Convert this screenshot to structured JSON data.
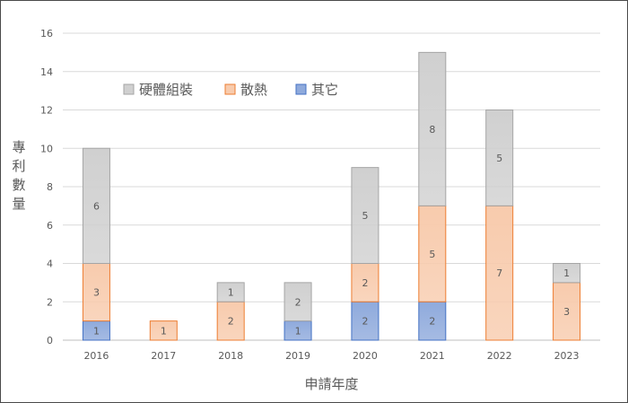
{
  "chart_data": {
    "type": "bar",
    "stacked": true,
    "title": "",
    "xlabel": "申請年度",
    "ylabel": "專利數量",
    "categories": [
      "2016",
      "2017",
      "2018",
      "2019",
      "2020",
      "2021",
      "2022",
      "2023"
    ],
    "ylim": [
      0,
      16
    ],
    "yticks": [
      0,
      2,
      4,
      6,
      8,
      10,
      12,
      14,
      16
    ],
    "grid": true,
    "legend_position": "top-left",
    "series": [
      {
        "name": "其它",
        "color": "#8faadc",
        "stroke": "#4472c4",
        "values": [
          1,
          0,
          0,
          1,
          2,
          2,
          0,
          0
        ]
      },
      {
        "name": "散熱",
        "color": "#f8cbad",
        "stroke": "#ed7d31",
        "values": [
          3,
          1,
          2,
          0,
          2,
          5,
          7,
          3
        ]
      },
      {
        "name": "硬體組裝",
        "color": "#d0d0d0",
        "stroke": "#a5a5a5",
        "values": [
          6,
          0,
          1,
          2,
          5,
          8,
          5,
          1
        ]
      }
    ],
    "legend_order": [
      2,
      1,
      0
    ]
  }
}
